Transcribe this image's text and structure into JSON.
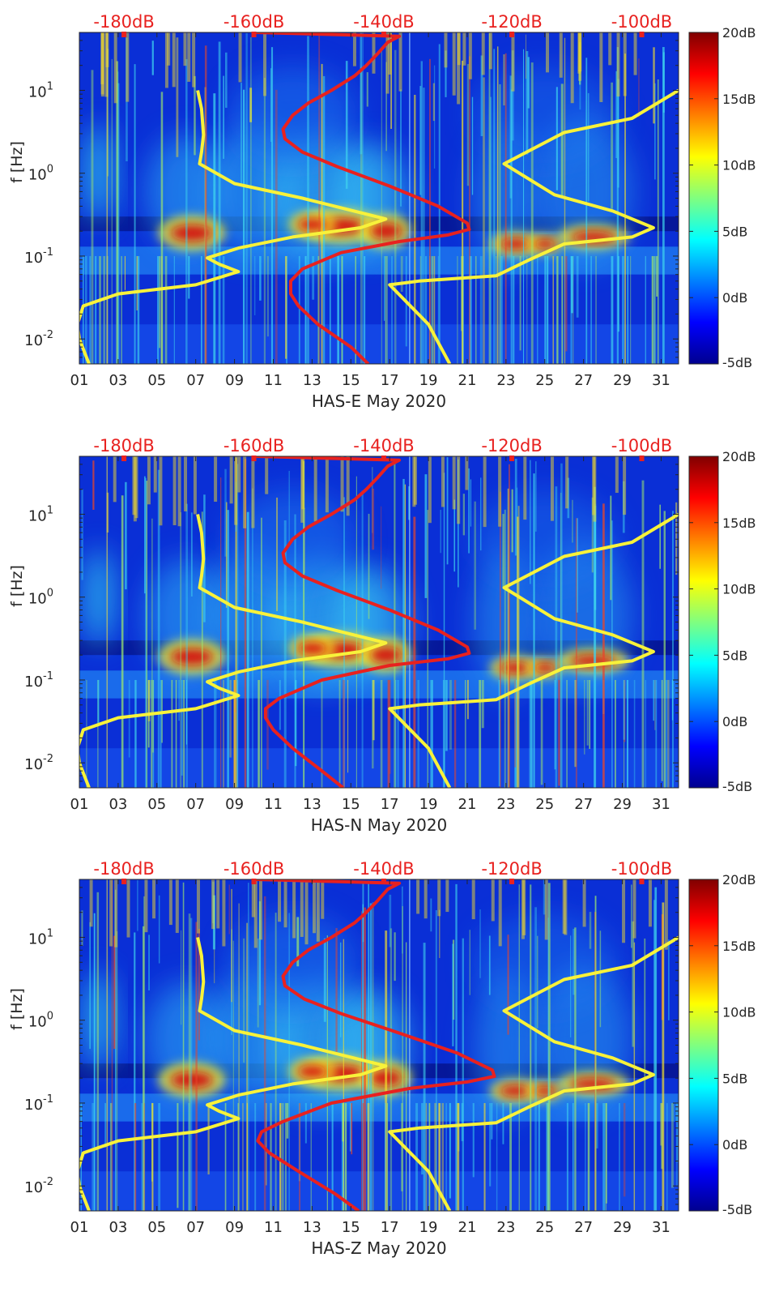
{
  "chart_data": [
    {
      "type": "heatmap",
      "title": "",
      "xlabel": "HAS-E May 2020",
      "ylabel": "f [Hz]",
      "x_ticks": [
        "01",
        "03",
        "05",
        "07",
        "09",
        "11",
        "13",
        "15",
        "17",
        "19",
        "21",
        "23",
        "25",
        "27",
        "29",
        "31"
      ],
      "x_range_days": [
        1,
        31.9
      ],
      "y_scale": "log",
      "y_range_hz": [
        0.005,
        50
      ],
      "y_ticks": [
        {
          "value": 0.01,
          "base": "10",
          "exp": "-2"
        },
        {
          "value": 0.1,
          "base": "10",
          "exp": "-1"
        },
        {
          "value": 1,
          "base": "10",
          "exp": "0"
        },
        {
          "value": 10,
          "base": "10",
          "exp": "1"
        }
      ],
      "top_axis_ticks": [
        {
          "day": 3.3,
          "label": "-180dB"
        },
        {
          "day": 10.0,
          "label": "-160dB"
        },
        {
          "day": 16.7,
          "label": "-140dB"
        },
        {
          "day": 23.3,
          "label": "-120dB"
        },
        {
          "day": 30.0,
          "label": "-100dB"
        }
      ],
      "colorbar": {
        "ticks": [
          "20dB",
          "15dB",
          "10dB",
          "5dB",
          "0dB",
          "-5dB"
        ],
        "range_db": [
          -5,
          20
        ],
        "colormap": "jet"
      },
      "series": [
        {
          "color": "#e8211f",
          "points": [
            [
              15.9,
              0.005
            ],
            [
              15.0,
              0.008
            ],
            [
              13.3,
              0.015
            ],
            [
              12.3,
              0.025
            ],
            [
              11.9,
              0.035
            ],
            [
              11.9,
              0.05
            ],
            [
              12.5,
              0.07
            ],
            [
              14.5,
              0.11
            ],
            [
              17.5,
              0.15
            ],
            [
              20.0,
              0.18
            ],
            [
              21.1,
              0.21
            ],
            [
              21.0,
              0.25
            ],
            [
              19.5,
              0.4
            ],
            [
              17.0,
              0.7
            ],
            [
              14.3,
              1.2
            ],
            [
              12.5,
              1.8
            ],
            [
              11.6,
              2.6
            ],
            [
              11.5,
              3.4
            ],
            [
              12.0,
              5
            ],
            [
              12.8,
              7
            ],
            [
              14.0,
              10
            ],
            [
              15.2,
              15
            ],
            [
              15.8,
              20
            ],
            [
              16.4,
              28
            ],
            [
              16.9,
              38
            ],
            [
              17.5,
              45
            ],
            [
              10.1,
              50
            ]
          ]
        },
        {
          "color": "#f8f23a",
          "points": [
            [
              1.5,
              0.005
            ],
            [
              1.0,
              0.01
            ],
            [
              0.9,
              0.015
            ],
            [
              1.2,
              0.025
            ],
            [
              3.0,
              0.035
            ],
            [
              7.0,
              0.045
            ],
            [
              9.2,
              0.065
            ],
            [
              8.2,
              0.08
            ],
            [
              7.6,
              0.095
            ],
            [
              9.2,
              0.125
            ],
            [
              12.0,
              0.17
            ],
            [
              15.5,
              0.22
            ],
            [
              16.8,
              0.28
            ],
            [
              12.5,
              0.5
            ],
            [
              9.0,
              0.75
            ],
            [
              7.2,
              1.3
            ],
            [
              7.3,
              1.8
            ],
            [
              7.4,
              2.9
            ],
            [
              7.3,
              6
            ],
            [
              7.1,
              10
            ]
          ]
        },
        {
          "color": "#f8f23a",
          "points": [
            [
              20.1,
              0.005
            ],
            [
              19.0,
              0.015
            ],
            [
              17.0,
              0.045
            ],
            [
              18.5,
              0.05
            ],
            [
              22.5,
              0.058
            ],
            [
              24.2,
              0.09
            ],
            [
              26.0,
              0.14
            ],
            [
              29.5,
              0.17
            ],
            [
              30.6,
              0.22
            ],
            [
              28.5,
              0.35
            ],
            [
              25.5,
              0.55
            ],
            [
              22.9,
              1.3
            ],
            [
              26.0,
              3.1
            ],
            [
              29.5,
              4.6
            ],
            [
              31.9,
              10
            ]
          ]
        }
      ]
    },
    {
      "type": "heatmap",
      "title": "",
      "xlabel": "HAS-N May 2020",
      "ylabel": "f [Hz]",
      "x_ticks": [
        "01",
        "03",
        "05",
        "07",
        "09",
        "11",
        "13",
        "15",
        "17",
        "19",
        "21",
        "23",
        "25",
        "27",
        "29",
        "31"
      ],
      "x_range_days": [
        1,
        31.9
      ],
      "y_scale": "log",
      "y_range_hz": [
        0.005,
        50
      ],
      "y_ticks": [
        {
          "value": 0.01,
          "base": "10",
          "exp": "-2"
        },
        {
          "value": 0.1,
          "base": "10",
          "exp": "-1"
        },
        {
          "value": 1,
          "base": "10",
          "exp": "0"
        },
        {
          "value": 10,
          "base": "10",
          "exp": "1"
        }
      ],
      "top_axis_ticks": [
        {
          "day": 3.3,
          "label": "-180dB"
        },
        {
          "day": 10.0,
          "label": "-160dB"
        },
        {
          "day": 16.7,
          "label": "-140dB"
        },
        {
          "day": 23.3,
          "label": "-120dB"
        },
        {
          "day": 30.0,
          "label": "-100dB"
        }
      ],
      "colorbar": {
        "ticks": [
          "20dB",
          "15dB",
          "10dB",
          "5dB",
          "0dB",
          "-5dB"
        ],
        "range_db": [
          -5,
          20
        ],
        "colormap": "jet"
      },
      "series": [
        {
          "color": "#e8211f",
          "points": [
            [
              14.6,
              0.005
            ],
            [
              13.5,
              0.008
            ],
            [
              12.0,
              0.015
            ],
            [
              11.0,
              0.025
            ],
            [
              10.6,
              0.035
            ],
            [
              10.6,
              0.045
            ],
            [
              11.3,
              0.06
            ],
            [
              13.5,
              0.1
            ],
            [
              17.0,
              0.15
            ],
            [
              20.0,
              0.18
            ],
            [
              21.1,
              0.21
            ],
            [
              21.0,
              0.25
            ],
            [
              19.5,
              0.4
            ],
            [
              17.0,
              0.7
            ],
            [
              14.3,
              1.2
            ],
            [
              12.5,
              1.8
            ],
            [
              11.6,
              2.6
            ],
            [
              11.5,
              3.4
            ],
            [
              12.0,
              5
            ],
            [
              12.8,
              7
            ],
            [
              14.0,
              10
            ],
            [
              15.2,
              15
            ],
            [
              15.8,
              20
            ],
            [
              16.4,
              28
            ],
            [
              16.9,
              38
            ],
            [
              17.5,
              45
            ],
            [
              10.1,
              50
            ]
          ]
        },
        {
          "color": "#f8f23a",
          "points": [
            [
              1.5,
              0.005
            ],
            [
              1.0,
              0.01
            ],
            [
              0.9,
              0.015
            ],
            [
              1.2,
              0.025
            ],
            [
              3.0,
              0.035
            ],
            [
              7.0,
              0.045
            ],
            [
              9.2,
              0.065
            ],
            [
              8.2,
              0.08
            ],
            [
              7.6,
              0.095
            ],
            [
              9.2,
              0.125
            ],
            [
              12.0,
              0.17
            ],
            [
              15.5,
              0.22
            ],
            [
              16.8,
              0.28
            ],
            [
              12.5,
              0.5
            ],
            [
              9.0,
              0.75
            ],
            [
              7.2,
              1.3
            ],
            [
              7.3,
              1.8
            ],
            [
              7.4,
              2.9
            ],
            [
              7.3,
              6
            ],
            [
              7.1,
              10
            ]
          ]
        },
        {
          "color": "#f8f23a",
          "points": [
            [
              20.1,
              0.005
            ],
            [
              19.0,
              0.015
            ],
            [
              17.0,
              0.045
            ],
            [
              18.5,
              0.05
            ],
            [
              22.5,
              0.058
            ],
            [
              24.2,
              0.09
            ],
            [
              26.0,
              0.14
            ],
            [
              29.5,
              0.17
            ],
            [
              30.6,
              0.22
            ],
            [
              28.5,
              0.35
            ],
            [
              25.5,
              0.55
            ],
            [
              22.9,
              1.3
            ],
            [
              26.0,
              3.1
            ],
            [
              29.5,
              4.6
            ],
            [
              31.9,
              10
            ]
          ]
        }
      ]
    },
    {
      "type": "heatmap",
      "title": "",
      "xlabel": "HAS-Z May 2020",
      "ylabel": "f [Hz]",
      "x_ticks": [
        "01",
        "03",
        "05",
        "07",
        "09",
        "11",
        "13",
        "15",
        "17",
        "19",
        "21",
        "23",
        "25",
        "27",
        "29",
        "31"
      ],
      "x_range_days": [
        1,
        31.9
      ],
      "y_scale": "log",
      "y_range_hz": [
        0.005,
        50
      ],
      "y_ticks": [
        {
          "value": 0.01,
          "base": "10",
          "exp": "-2"
        },
        {
          "value": 0.1,
          "base": "10",
          "exp": "-1"
        },
        {
          "value": 1,
          "base": "10",
          "exp": "0"
        },
        {
          "value": 10,
          "base": "10",
          "exp": "1"
        }
      ],
      "top_axis_ticks": [
        {
          "day": 3.3,
          "label": "-180dB"
        },
        {
          "day": 10.0,
          "label": "-160dB"
        },
        {
          "day": 16.7,
          "label": "-140dB"
        },
        {
          "day": 23.3,
          "label": "-120dB"
        },
        {
          "day": 30.0,
          "label": "-100dB"
        }
      ],
      "colorbar": {
        "ticks": [
          "20dB",
          "15dB",
          "10dB",
          "5dB",
          "0dB",
          "-5dB"
        ],
        "range_db": [
          -5,
          20
        ],
        "colormap": "jet"
      },
      "series": [
        {
          "color": "#e8211f",
          "points": [
            [
              15.4,
              0.005
            ],
            [
              14.2,
              0.008
            ],
            [
              12.3,
              0.015
            ],
            [
              10.8,
              0.025
            ],
            [
              10.2,
              0.035
            ],
            [
              10.4,
              0.045
            ],
            [
              11.5,
              0.06
            ],
            [
              14.0,
              0.1
            ],
            [
              18.0,
              0.15
            ],
            [
              21.0,
              0.18
            ],
            [
              22.4,
              0.21
            ],
            [
              22.3,
              0.25
            ],
            [
              20.5,
              0.4
            ],
            [
              17.5,
              0.7
            ],
            [
              14.5,
              1.2
            ],
            [
              12.6,
              1.8
            ],
            [
              11.6,
              2.6
            ],
            [
              11.5,
              3.4
            ],
            [
              12.0,
              5
            ],
            [
              12.8,
              7
            ],
            [
              14.0,
              10
            ],
            [
              15.2,
              15
            ],
            [
              15.8,
              20
            ],
            [
              16.4,
              28
            ],
            [
              16.9,
              38
            ],
            [
              17.5,
              45
            ],
            [
              10.1,
              50
            ]
          ]
        },
        {
          "color": "#f8f23a",
          "points": [
            [
              1.5,
              0.005
            ],
            [
              1.0,
              0.01
            ],
            [
              0.9,
              0.015
            ],
            [
              1.2,
              0.025
            ],
            [
              3.0,
              0.035
            ],
            [
              7.0,
              0.045
            ],
            [
              9.2,
              0.065
            ],
            [
              8.2,
              0.08
            ],
            [
              7.6,
              0.095
            ],
            [
              9.2,
              0.125
            ],
            [
              12.0,
              0.17
            ],
            [
              15.5,
              0.22
            ],
            [
              16.8,
              0.28
            ],
            [
              12.5,
              0.5
            ],
            [
              9.0,
              0.75
            ],
            [
              7.2,
              1.3
            ],
            [
              7.3,
              1.8
            ],
            [
              7.4,
              2.9
            ],
            [
              7.3,
              6
            ],
            [
              7.1,
              10
            ]
          ]
        },
        {
          "color": "#f8f23a",
          "points": [
            [
              20.1,
              0.005
            ],
            [
              19.0,
              0.015
            ],
            [
              17.0,
              0.045
            ],
            [
              18.5,
              0.05
            ],
            [
              22.5,
              0.058
            ],
            [
              24.2,
              0.09
            ],
            [
              26.0,
              0.14
            ],
            [
              29.5,
              0.17
            ],
            [
              30.6,
              0.22
            ],
            [
              28.5,
              0.35
            ],
            [
              25.5,
              0.55
            ],
            [
              22.9,
              1.3
            ],
            [
              26.0,
              3.1
            ],
            [
              29.5,
              4.6
            ],
            [
              31.9,
              10
            ]
          ]
        }
      ]
    }
  ]
}
